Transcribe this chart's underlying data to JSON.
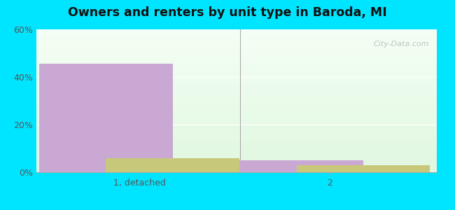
{
  "title": "Owners and renters by unit type in Baroda, MI",
  "categories": [
    "1, detached",
    "2"
  ],
  "owner_values": [
    45.5,
    5.0
  ],
  "renter_values": [
    6.0,
    3.0
  ],
  "owner_color": "#c9a8d4",
  "renter_color": "#c8c87a",
  "ylim": [
    0,
    60
  ],
  "yticks": [
    0,
    20,
    40,
    60
  ],
  "yticklabels": [
    "0%",
    "20%",
    "40%",
    "60%"
  ],
  "background_top": "#e0f7f7",
  "background_bottom": "#e8f5e0",
  "bar_width": 0.35,
  "figsize": [
    6.5,
    3.0
  ],
  "dpi": 100,
  "outer_bg": "#00e5ff",
  "watermark": "City-Data.com"
}
